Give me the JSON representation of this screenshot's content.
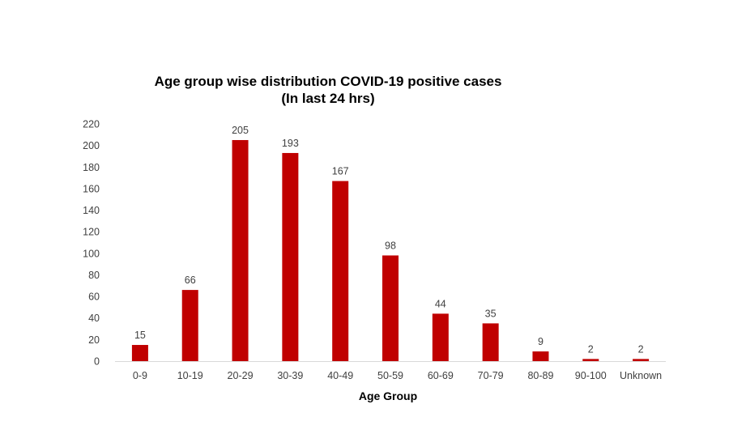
{
  "chart_data": {
    "type": "bar",
    "title_line1": "Age group wise distribution COVID-19 positive cases",
    "title_line2": "(In last 24 hrs)",
    "xlabel": "Age Group",
    "ylabel": "",
    "categories": [
      "0-9",
      "10-19",
      "20-29",
      "30-39",
      "40-49",
      "50-59",
      "60-69",
      "70-79",
      "80-89",
      "90-100",
      "Unknown"
    ],
    "values": [
      15,
      66,
      205,
      193,
      167,
      98,
      44,
      35,
      9,
      2,
      2
    ],
    "ylim": [
      0,
      220
    ],
    "yticks": [
      0,
      20,
      40,
      60,
      80,
      100,
      120,
      140,
      160,
      180,
      200,
      220
    ],
    "data_labels": true,
    "grid": false,
    "legend": "none",
    "colors": {
      "bar": "#C00000",
      "axis": "#D9D9D9"
    }
  }
}
